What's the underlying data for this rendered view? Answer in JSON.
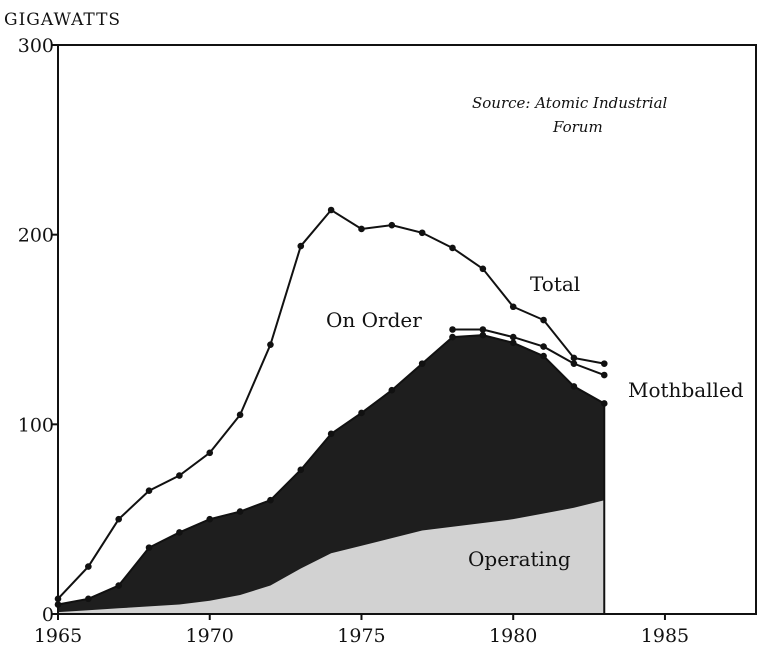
{
  "chart_data": {
    "type": "area",
    "ylabel": "GIGAWATTS",
    "xlabel": "",
    "source_line1": "Source: Atomic Industrial",
    "source_line2": "Forum",
    "xlim": [
      1965,
      1988
    ],
    "ylim": [
      0,
      300
    ],
    "x_ticks": [
      1965,
      1970,
      1975,
      1980,
      1985
    ],
    "y_ticks": [
      0,
      100,
      200,
      300
    ],
    "colors": {
      "operating": "#d2d2d2",
      "under_construction": "#1e1e1e",
      "on_order": "#ffffff",
      "line": "#111111"
    },
    "labels": {
      "total": "Total",
      "on_order": "On Order",
      "mothballed": "Mothballed",
      "operating": "Operating"
    },
    "series": [
      {
        "name": "Total",
        "x": [
          1965,
          1966,
          1967,
          1968,
          1969,
          1970,
          1971,
          1972,
          1973,
          1974,
          1975,
          1976,
          1977,
          1978,
          1979,
          1980,
          1981,
          1982,
          1983
        ],
        "values": [
          8,
          25,
          50,
          65,
          73,
          85,
          105,
          142,
          194,
          213,
          203,
          205,
          201,
          193,
          182,
          162,
          155,
          135,
          132
        ]
      },
      {
        "name": "Mothballed",
        "x": [
          1978,
          1979,
          1980,
          1981,
          1982,
          1983
        ],
        "values": [
          150,
          150,
          146,
          141,
          132,
          126
        ]
      },
      {
        "name": "Operating + Under Construction",
        "x": [
          1965,
          1966,
          1967,
          1968,
          1969,
          1970,
          1971,
          1972,
          1973,
          1974,
          1975,
          1976,
          1977,
          1978,
          1979,
          1980,
          1981,
          1982,
          1983
        ],
        "values": [
          5,
          8,
          15,
          35,
          43,
          50,
          54,
          60,
          76,
          95,
          106,
          118,
          132,
          146,
          147,
          143,
          136,
          120,
          111
        ]
      },
      {
        "name": "Operating",
        "x": [
          1965,
          1966,
          1967,
          1968,
          1969,
          1970,
          1971,
          1972,
          1973,
          1974,
          1975,
          1976,
          1977,
          1978,
          1979,
          1980,
          1981,
          1982,
          1983
        ],
        "values": [
          1,
          2,
          3,
          4,
          5,
          7,
          10,
          15,
          24,
          32,
          36,
          40,
          44,
          46,
          48,
          50,
          53,
          56,
          60
        ]
      }
    ]
  }
}
